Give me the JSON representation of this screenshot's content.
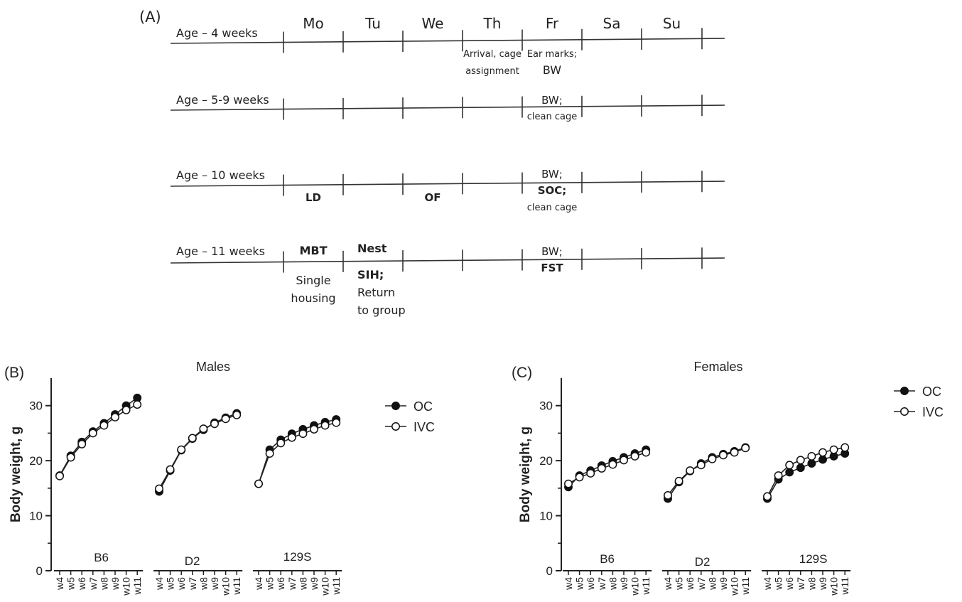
{
  "panel_a": {
    "label": "(A)",
    "days": [
      "Mo",
      "Tu",
      "We",
      "Th",
      "Fr",
      "Sa",
      "Su"
    ],
    "rows": [
      {
        "age_label": "Age – 4 weeks",
        "notes": [
          {
            "day": "Th",
            "lines": [
              "Arrival, cage",
              "assignment"
            ],
            "bold": false
          },
          {
            "day": "Fr",
            "lines": [
              "Ear marks;",
              "BW"
            ],
            "bold": false
          }
        ]
      },
      {
        "age_label": "Age – 5-9 weeks",
        "notes": [
          {
            "day": "Fr",
            "lines": [
              "BW;",
              "clean cage"
            ],
            "bold": false
          }
        ]
      },
      {
        "age_label": "Age – 10 weeks",
        "notes": [
          {
            "day": "Mo",
            "lines": [
              "LD"
            ],
            "bold": true
          },
          {
            "day": "We",
            "lines": [
              "OF"
            ],
            "bold": true
          },
          {
            "day": "Fr",
            "lines": [
              "BW;",
              "SOC;",
              "clean cage"
            ],
            "bold": false
          }
        ]
      },
      {
        "age_label": "Age – 11 weeks",
        "notes": [
          {
            "day": "Mo",
            "lines": [
              "MBT",
              "Single",
              "housing"
            ],
            "bold": false
          },
          {
            "day": "Tu",
            "lines": [
              "Nest",
              "SIH;",
              "Return",
              "to group"
            ],
            "bold": false
          },
          {
            "day": "Fr",
            "lines": [
              "BW;",
              "FST"
            ],
            "bold": false
          }
        ]
      }
    ]
  },
  "chart_data": [
    {
      "type": "line",
      "panel_label": "(B)",
      "title": "Males",
      "ylabel": "Body weight, g",
      "ylim": [
        0,
        35
      ],
      "yticks": [
        0,
        10,
        20,
        30
      ],
      "x": [
        "w4",
        "w5",
        "w6",
        "w7",
        "w8",
        "w9",
        "w10",
        "w11"
      ],
      "groups": [
        {
          "name": "B6",
          "series": [
            {
              "name": "OC",
              "values": [
                17.3,
                20.9,
                23.4,
                25.3,
                26.8,
                28.4,
                30.0,
                31.4
              ]
            },
            {
              "name": "IVC",
              "values": [
                17.2,
                20.6,
                23.0,
                25.0,
                26.4,
                27.9,
                29.2,
                30.2
              ]
            }
          ]
        },
        {
          "name": "D2",
          "series": [
            {
              "name": "OC",
              "values": [
                14.4,
                18.2,
                21.9,
                24.0,
                25.6,
                26.9,
                27.8,
                28.6
              ]
            },
            {
              "name": "IVC",
              "values": [
                14.9,
                18.4,
                22.0,
                24.1,
                25.8,
                26.7,
                27.6,
                28.3
              ]
            }
          ]
        },
        {
          "name": "129S",
          "series": [
            {
              "name": "OC",
              "values": [
                15.8,
                22.0,
                23.8,
                24.9,
                25.7,
                26.4,
                27.0,
                27.5
              ]
            },
            {
              "name": "IVC",
              "values": [
                15.8,
                21.3,
                23.2,
                24.2,
                24.9,
                25.7,
                26.4,
                26.9
              ]
            }
          ]
        }
      ],
      "legend": [
        "OC",
        "IVC"
      ],
      "legend_position": "right"
    },
    {
      "type": "line",
      "panel_label": "(C)",
      "title": "Females",
      "ylabel": "Body weight, g",
      "ylim": [
        0,
        35
      ],
      "yticks": [
        0,
        10,
        20,
        30
      ],
      "x": [
        "w4",
        "w5",
        "w6",
        "w7",
        "w8",
        "w9",
        "w10",
        "w11"
      ],
      "groups": [
        {
          "name": "B6",
          "series": [
            {
              "name": "OC",
              "values": [
                15.2,
                17.3,
                18.2,
                19.1,
                19.9,
                20.6,
                21.3,
                22.0
              ]
            },
            {
              "name": "IVC",
              "values": [
                15.8,
                17.0,
                17.7,
                18.6,
                19.3,
                20.1,
                20.8,
                21.5
              ]
            }
          ]
        },
        {
          "name": "D2",
          "series": [
            {
              "name": "OC",
              "values": [
                13.1,
                16.1,
                18.1,
                19.5,
                20.6,
                21.2,
                21.7,
                22.4
              ]
            },
            {
              "name": "IVC",
              "values": [
                13.7,
                16.3,
                18.2,
                19.2,
                20.3,
                21.0,
                21.5,
                22.3
              ]
            }
          ]
        },
        {
          "name": "129S",
          "series": [
            {
              "name": "OC",
              "values": [
                13.1,
                16.6,
                17.9,
                18.7,
                19.5,
                20.2,
                20.8,
                21.3
              ]
            },
            {
              "name": "IVC",
              "values": [
                13.5,
                17.3,
                19.2,
                20.1,
                20.8,
                21.5,
                22.0,
                22.4
              ]
            }
          ]
        }
      ],
      "legend": [
        "OC",
        "IVC"
      ],
      "legend_position": "right"
    }
  ]
}
